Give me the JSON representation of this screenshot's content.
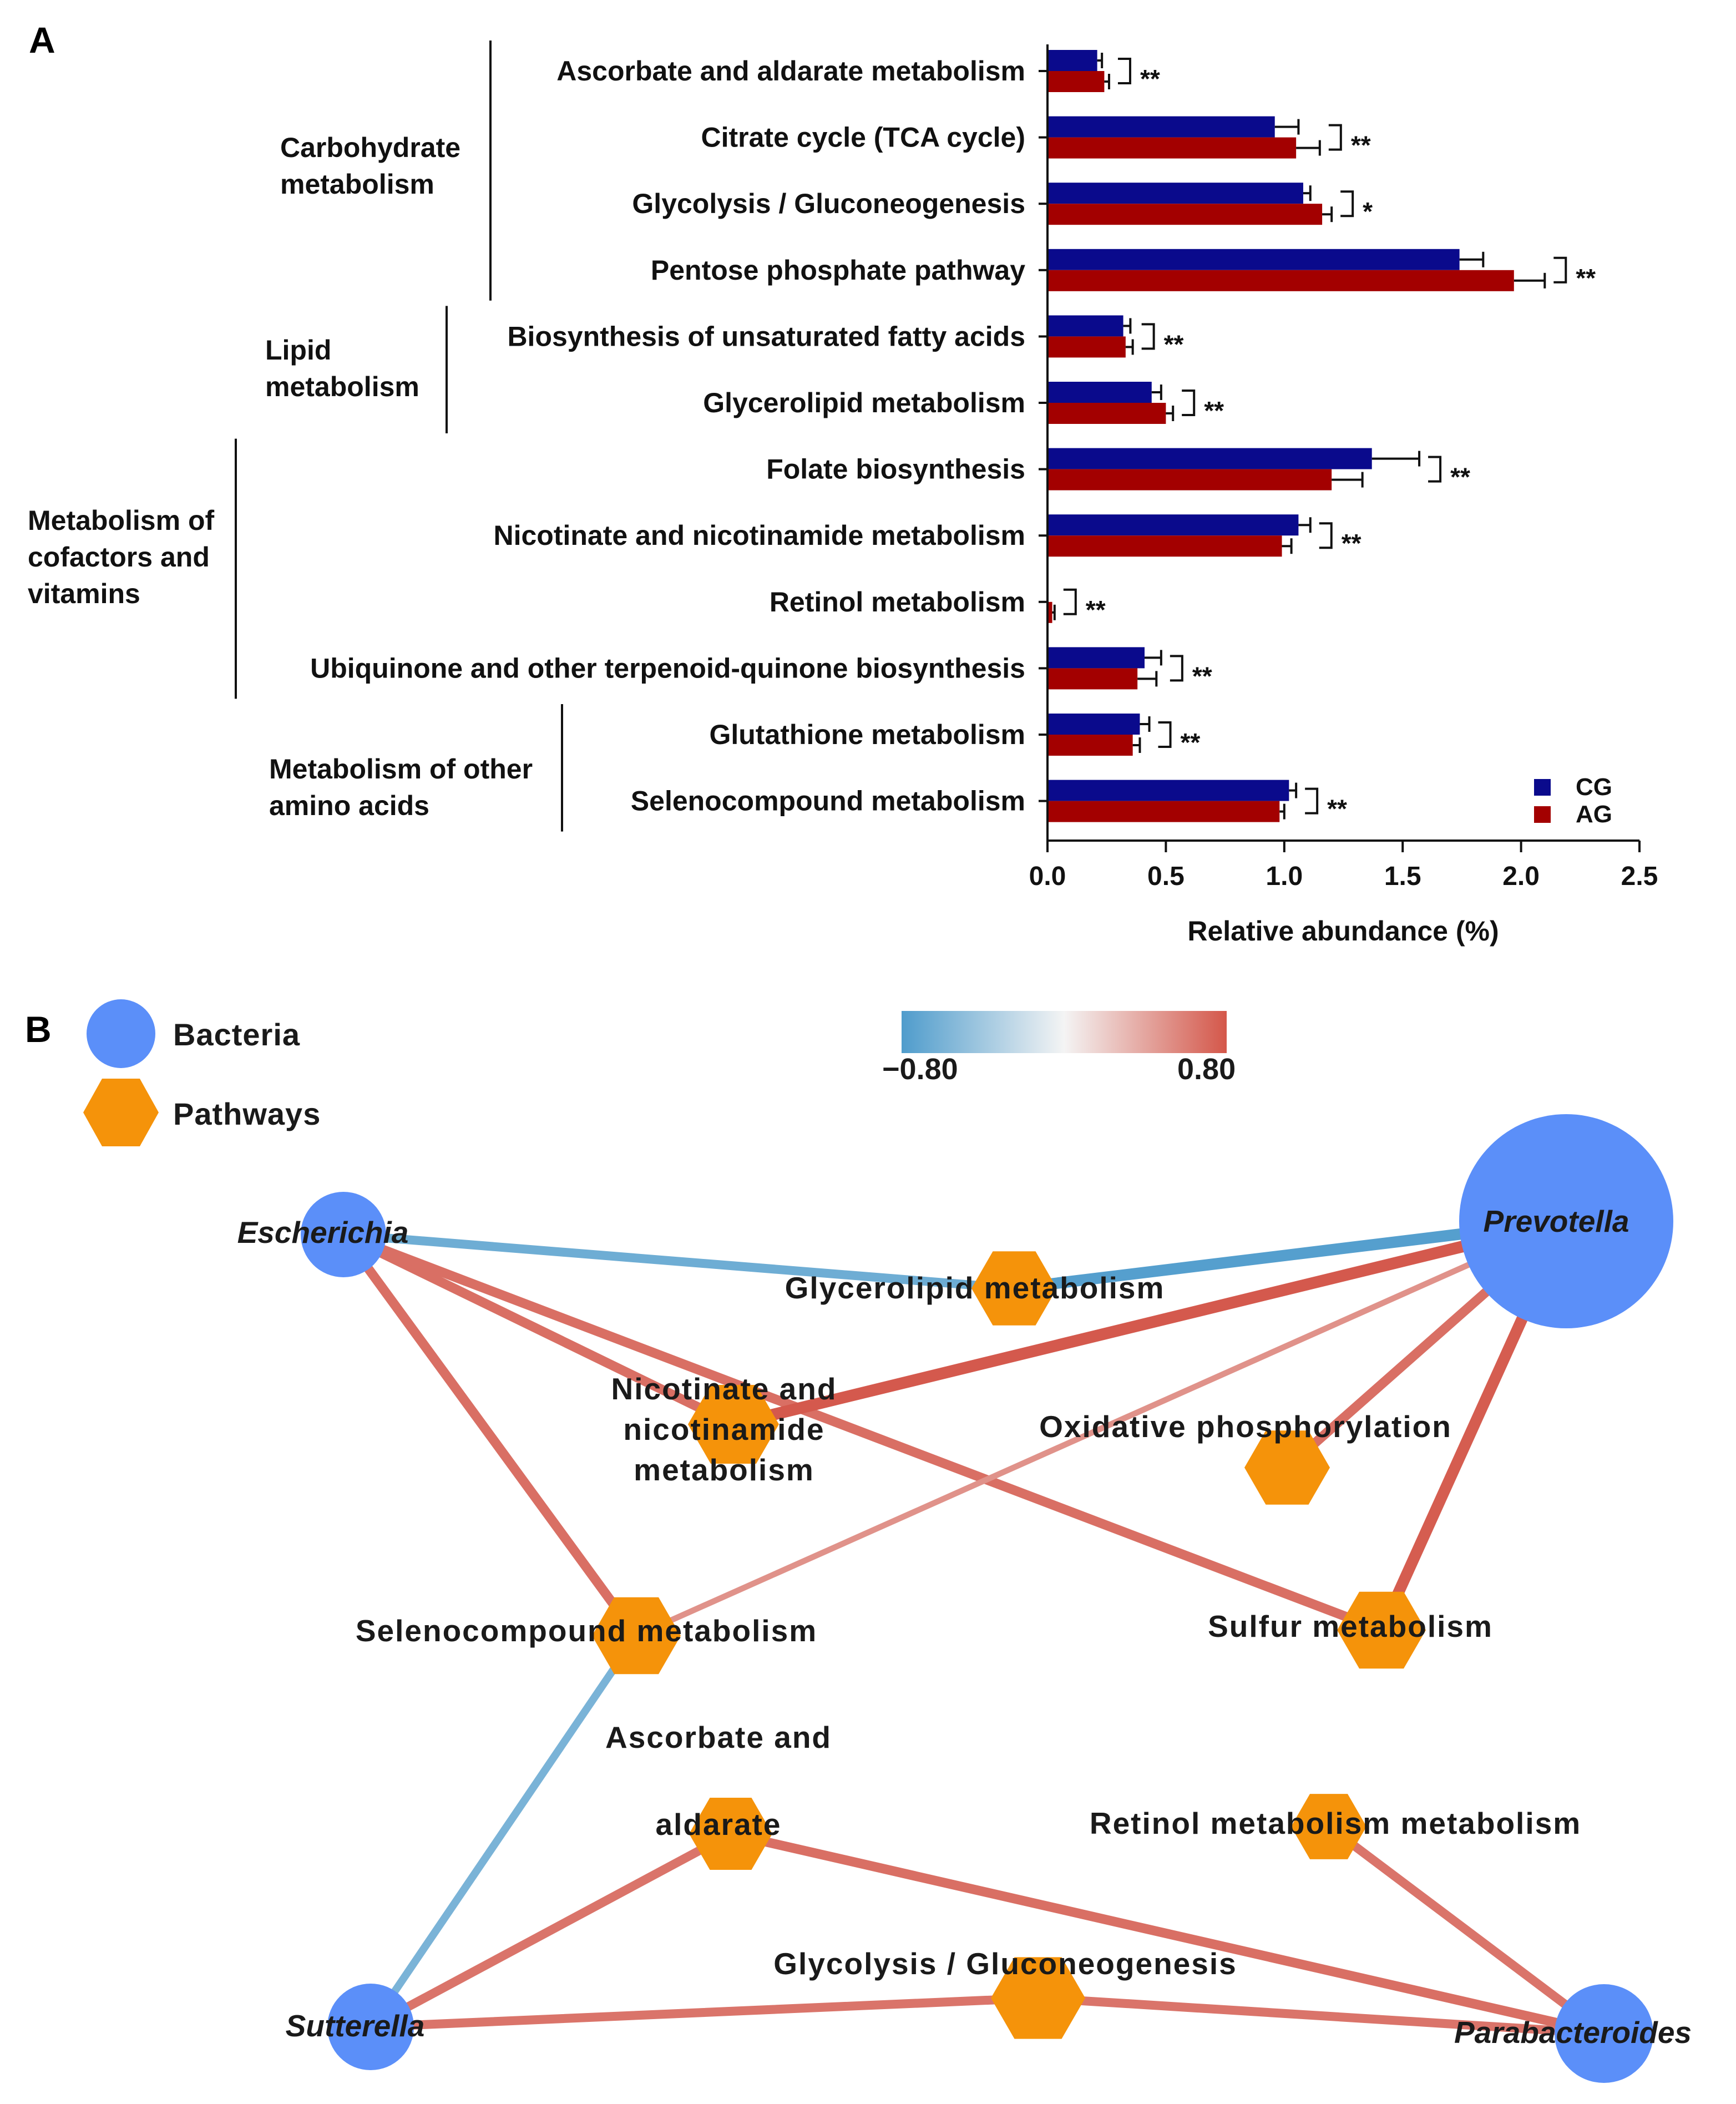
{
  "panelA": {
    "letter": "A",
    "chart_data": {
      "type": "bar",
      "orientation": "horizontal",
      "xlabel": "Relative abundance (%)",
      "xlim": [
        0,
        2.5
      ],
      "xticks": [
        "0.0",
        "0.5",
        "1.0",
        "1.5",
        "2.0",
        "2.5"
      ],
      "categories": [
        "Ascorbate and aldarate metabolism",
        "Citrate cycle (TCA cycle)",
        "Glycolysis / Gluconeogenesis",
        "Pentose phosphate pathway",
        "Biosynthesis of unsaturated fatty acids",
        "Glycerolipid metabolism",
        "Folate biosynthesis",
        "Nicotinate and nicotinamide metabolism",
        "Retinol metabolism",
        "Ubiquinone and other terpenoid-quinone biosynthesis",
        "Glutathione metabolism",
        "Selenocompound metabolism"
      ],
      "series": [
        {
          "name": "CG",
          "color": "#0a0a8c",
          "values": [
            0.21,
            0.96,
            1.08,
            1.74,
            0.32,
            0.44,
            1.37,
            1.06,
            0.0,
            0.41,
            0.39,
            1.02
          ],
          "errors": [
            0.02,
            0.1,
            0.03,
            0.1,
            0.03,
            0.04,
            0.2,
            0.05,
            0.0,
            0.07,
            0.04,
            0.03
          ]
        },
        {
          "name": "AG",
          "color": "#a30000",
          "values": [
            0.24,
            1.05,
            1.16,
            1.97,
            0.33,
            0.5,
            1.2,
            0.99,
            0.02,
            0.38,
            0.36,
            0.98
          ],
          "errors": [
            0.02,
            0.1,
            0.04,
            0.13,
            0.03,
            0.03,
            0.13,
            0.04,
            0.01,
            0.08,
            0.03,
            0.02
          ]
        }
      ],
      "significance": [
        "**",
        "**",
        "*",
        "**",
        "**",
        "**",
        "**",
        "**",
        "**",
        "**",
        "**",
        "**"
      ],
      "groups": [
        {
          "label": [
            "Carbohydrate",
            "metabolism"
          ],
          "first": 0,
          "last": 3
        },
        {
          "label": [
            "Lipid",
            "metabolism"
          ],
          "first": 4,
          "last": 5
        },
        {
          "label": [
            "Metabolism of",
            "cofactors and",
            "vitamins"
          ],
          "first": 6,
          "last": 9
        },
        {
          "label": [
            "Metabolism of other",
            "amino acids"
          ],
          "first": 10,
          "last": 11
        }
      ]
    }
  },
  "panelB": {
    "letter": "B",
    "legend": {
      "bacteria": "Bacteria",
      "pathways": "Pathways"
    },
    "colorbar": {
      "min_label": "−0.80",
      "max_label": "0.80",
      "min": -0.8,
      "max": 0.8,
      "neg_color": "#4f9ccc",
      "pos_color": "#d4574a"
    },
    "chart_data": {
      "type": "network",
      "nodes": [
        {
          "id": "Escherichia",
          "kind": "bacteria",
          "label": [
            "Escherichia"
          ]
        },
        {
          "id": "Prevotella",
          "kind": "bacteria",
          "label": [
            "Prevotella"
          ]
        },
        {
          "id": "Sutterella",
          "kind": "bacteria",
          "label": [
            "Sutterella"
          ]
        },
        {
          "id": "Parabacteroides",
          "kind": "bacteria",
          "label": [
            "Parabacteroides"
          ]
        },
        {
          "id": "Glycerolipid",
          "kind": "pathway",
          "label": [
            "Glycerolipid metabolism"
          ]
        },
        {
          "id": "Nicotinate",
          "kind": "pathway",
          "label": [
            "Nicotinate and",
            "nicotinamide",
            "metabolism"
          ]
        },
        {
          "id": "OxPhos",
          "kind": "pathway",
          "label": [
            "Oxidative phosphorylation"
          ]
        },
        {
          "id": "Seleno",
          "kind": "pathway",
          "label": [
            "Selenocompound metabolism"
          ]
        },
        {
          "id": "Sulfur",
          "kind": "pathway",
          "label": [
            "Sulfur metabolism"
          ]
        },
        {
          "id": "Ascorbate",
          "kind": "pathway",
          "label": [
            "Ascorbate and",
            "aldarate"
          ]
        },
        {
          "id": "Retinol",
          "kind": "pathway",
          "label": [
            "Retinol metabolism metabolism"
          ]
        },
        {
          "id": "Glycolysis",
          "kind": "pathway",
          "label": [
            "Glycolysis / Gluconeogenesis"
          ]
        }
      ],
      "edges": [
        {
          "source": "Escherichia",
          "target": "Glycerolipid",
          "r": -0.55
        },
        {
          "source": "Prevotella",
          "target": "Glycerolipid",
          "r": -0.75
        },
        {
          "source": "Escherichia",
          "target": "Nicotinate",
          "r": 0.6
        },
        {
          "source": "Escherichia",
          "target": "Seleno",
          "r": 0.6
        },
        {
          "source": "Escherichia",
          "target": "Sulfur",
          "r": 0.6
        },
        {
          "source": "Prevotella",
          "target": "Nicotinate",
          "r": 0.78
        },
        {
          "source": "Prevotella",
          "target": "OxPhos",
          "r": 0.6
        },
        {
          "source": "Prevotella",
          "target": "Sulfur",
          "r": 0.75
        },
        {
          "source": "Prevotella",
          "target": "Seleno",
          "r": 0.3
        },
        {
          "source": "Sutterella",
          "target": "Seleno",
          "r": -0.45
        },
        {
          "source": "Sutterella",
          "target": "Ascorbate",
          "r": 0.55
        },
        {
          "source": "Sutterella",
          "target": "Glycolysis",
          "r": 0.55
        },
        {
          "source": "Parabacteroides",
          "target": "Ascorbate",
          "r": 0.6
        },
        {
          "source": "Parabacteroides",
          "target": "Glycolysis",
          "r": 0.55
        },
        {
          "source": "Parabacteroides",
          "target": "Retinol",
          "r": 0.55
        }
      ]
    }
  }
}
